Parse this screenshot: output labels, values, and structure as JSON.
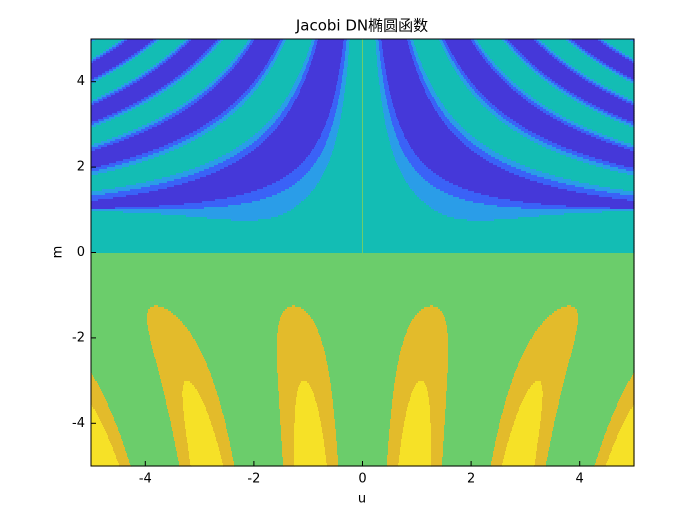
{
  "chart_data": {
    "type": "contourf",
    "title": "Jacobi DN椭圆函数",
    "x_label": "u",
    "y_label": "m",
    "xlim": [
      -5,
      5
    ],
    "ylim": [
      -5,
      5
    ],
    "xticks": [
      -4,
      -2,
      0,
      2,
      4
    ],
    "yticks": [
      -4,
      -2,
      0,
      2,
      4
    ],
    "levels": [
      -1,
      -0.5,
      0,
      0.5,
      1,
      1.5,
      2,
      2.5
    ],
    "colors": [
      "#4538d9",
      "#3a62f7",
      "#2a9de8",
      "#13bdb4",
      "#6bcd6b",
      "#e3bb2b",
      "#f6e127"
    ]
  }
}
